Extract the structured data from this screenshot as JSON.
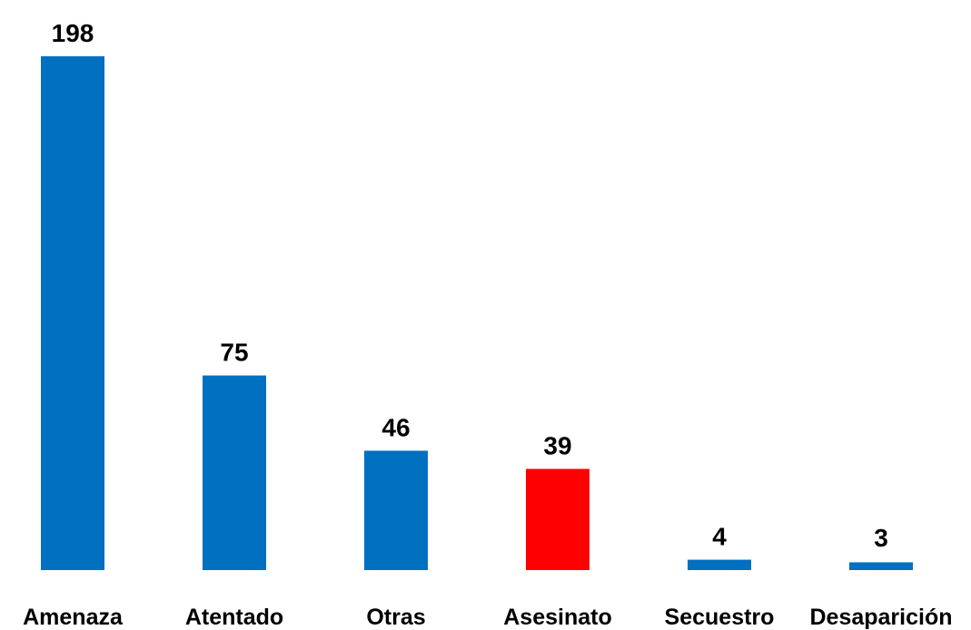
{
  "chart_data": {
    "type": "bar",
    "categories": [
      "Amenaza",
      "Atentado",
      "Otras",
      "Asesinato",
      "Secuestro",
      "Desaparición"
    ],
    "values": [
      198,
      75,
      46,
      39,
      4,
      3
    ],
    "colors": [
      "#0070c0",
      "#0070c0",
      "#0070c0",
      "#ff0000",
      "#0070c0",
      "#0070c0"
    ],
    "grid": false
  }
}
